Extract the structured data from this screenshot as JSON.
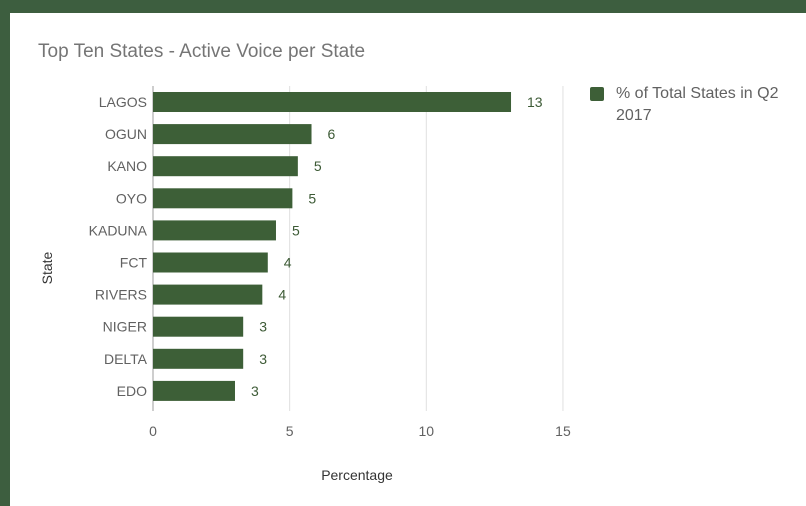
{
  "chart_data": {
    "type": "bar",
    "orientation": "horizontal",
    "title": "Top Ten States - Active Voice per State",
    "xlabel": "Percentage",
    "ylabel": "State",
    "categories": [
      "LAGOS",
      "OGUN",
      "KANO",
      "OYO",
      "KADUNA",
      "FCT",
      "RIVERS",
      "NIGER",
      "DELTA",
      "EDO"
    ],
    "series": [
      {
        "name": "% of Total States in Q2 2017",
        "values": [
          13.1,
          5.8,
          5.3,
          5.1,
          4.5,
          4.2,
          4.0,
          3.3,
          3.3,
          3.0
        ],
        "labels": [
          "13",
          "6",
          "5",
          "5",
          "5",
          "4",
          "4",
          "3",
          "3",
          "3"
        ],
        "color": "#3d5f37"
      }
    ],
    "xlim": [
      0,
      15
    ],
    "xticks": [
      "0",
      "5",
      "10",
      "15"
    ],
    "grid": "vertical",
    "legend_position": "right"
  }
}
